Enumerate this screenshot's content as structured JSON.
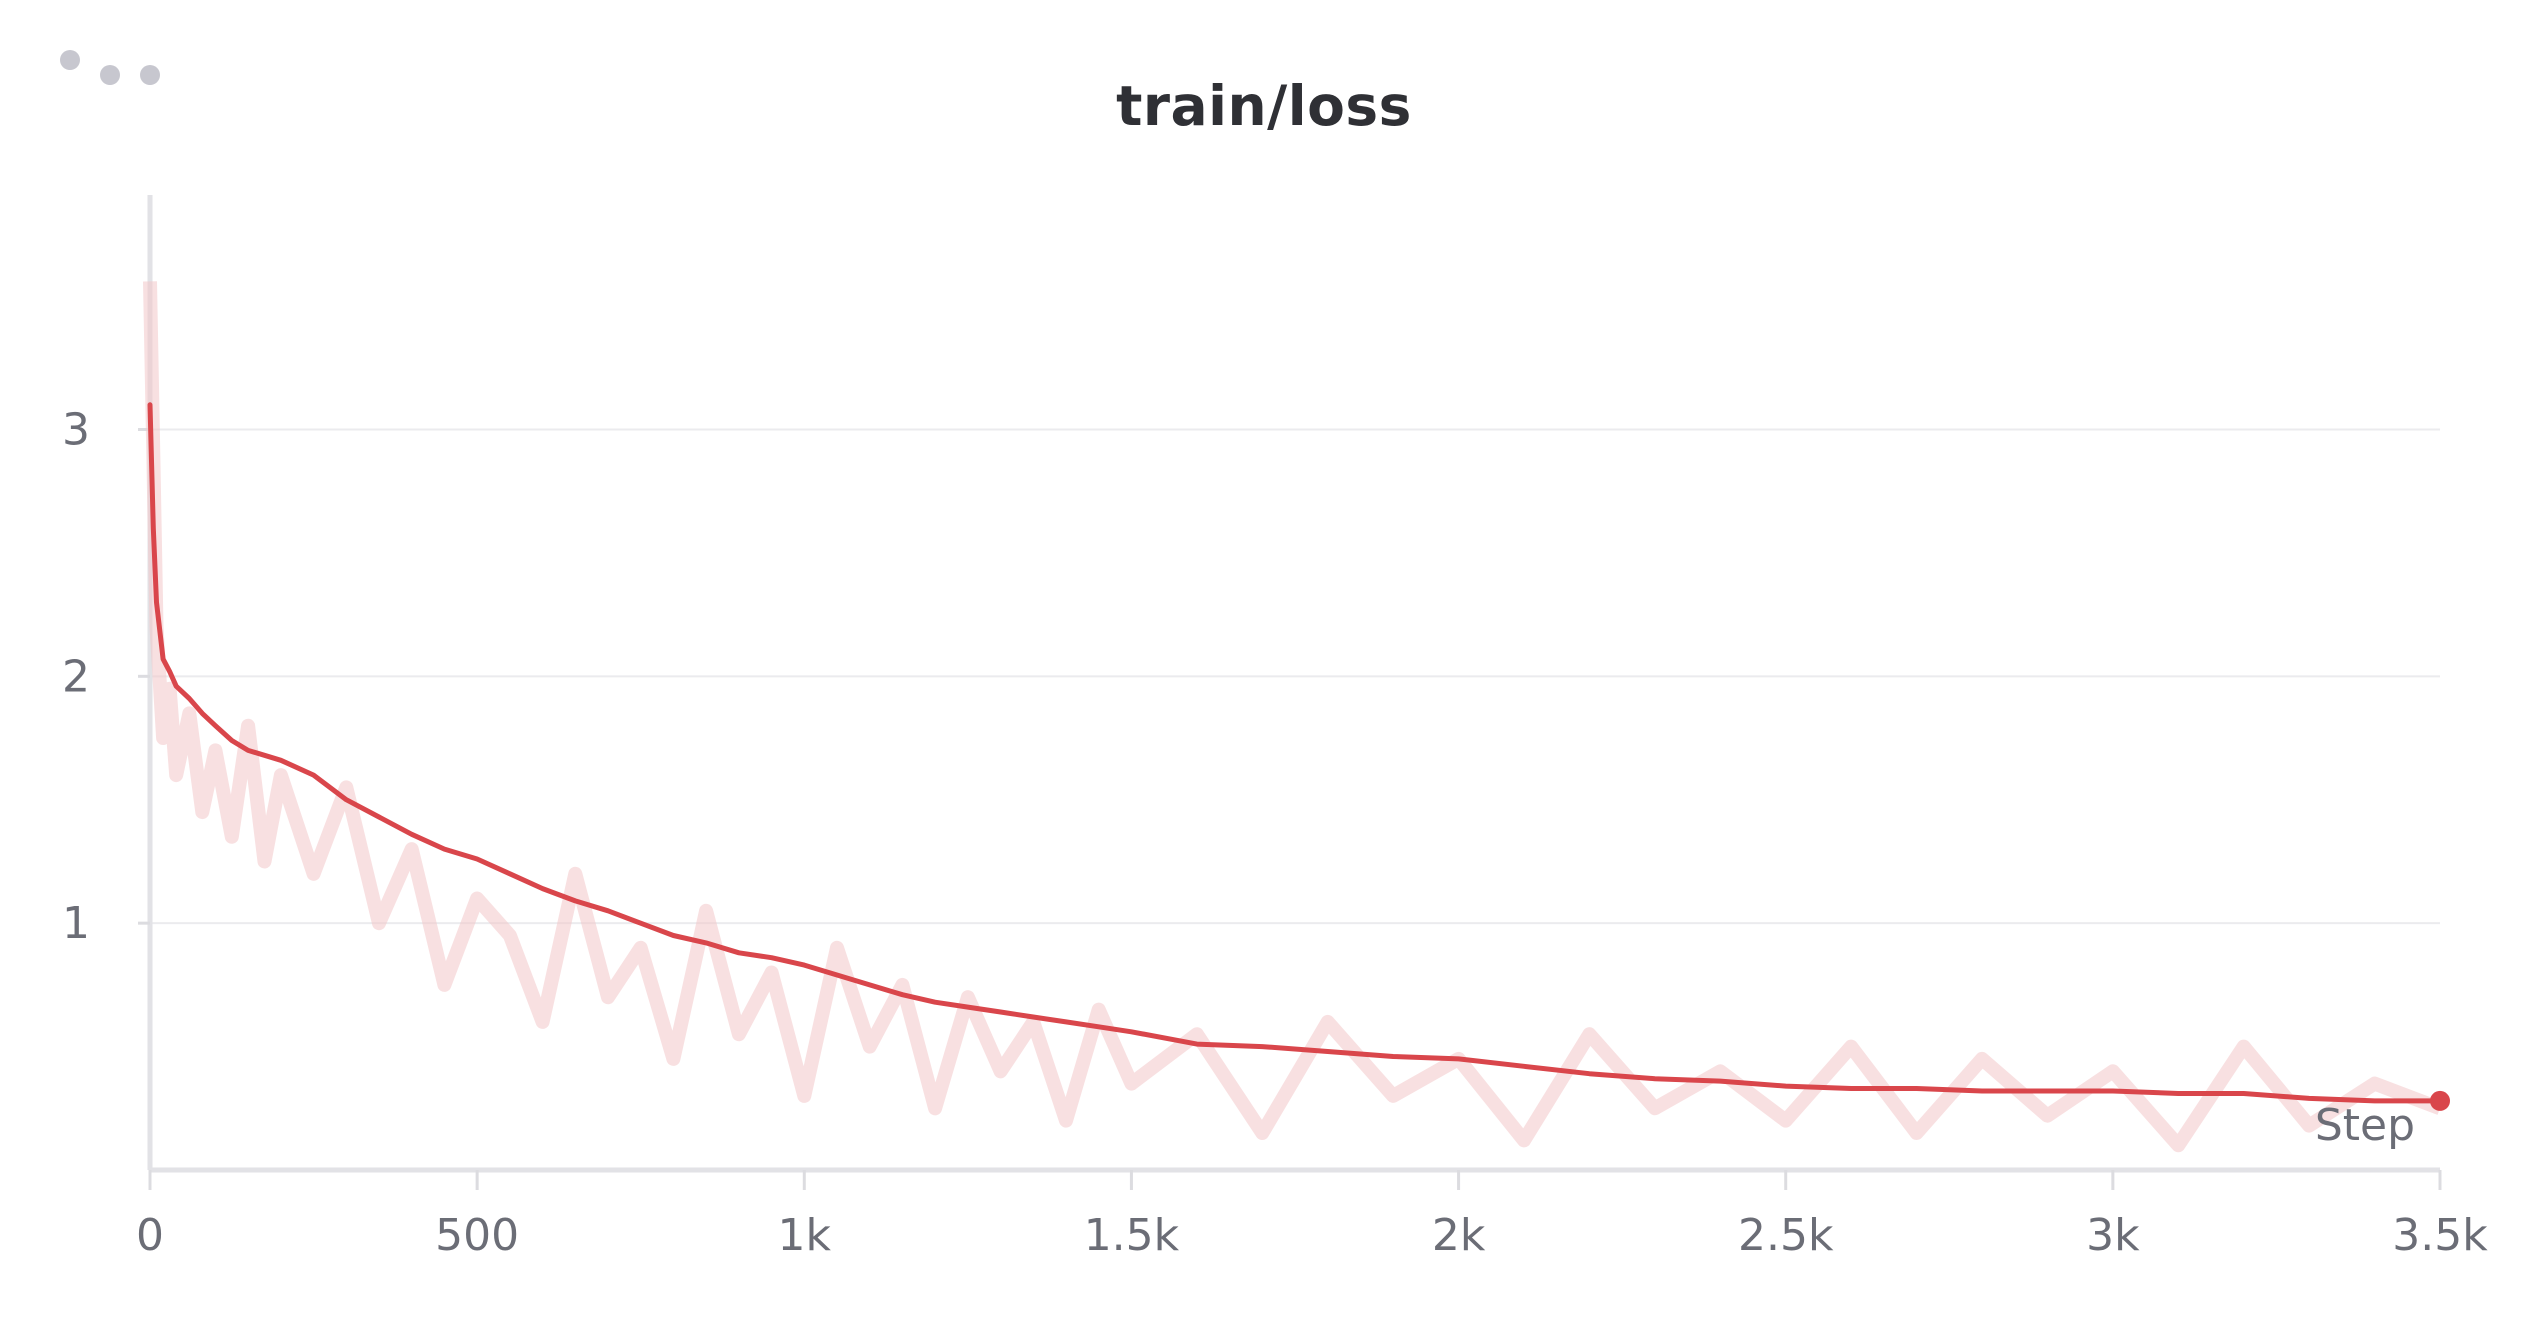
{
  "panel": {
    "menu_icon": "more-horizontal-icon"
  },
  "chart_data": {
    "type": "line",
    "title": "train/loss",
    "xlabel": "Step",
    "ylabel": "",
    "xlim": [
      0,
      3500
    ],
    "ylim": [
      0,
      3.95
    ],
    "x_ticks": [
      0,
      500,
      1000,
      1500,
      2000,
      2500,
      3000,
      3500
    ],
    "x_tick_labels": [
      "0",
      "500",
      "1k",
      "1.5k",
      "2k",
      "2.5k",
      "3k",
      "3.5k"
    ],
    "y_ticks": [
      1,
      2,
      3
    ],
    "y_tick_labels": [
      "1",
      "2",
      "3"
    ],
    "grid": true,
    "series": [
      {
        "role": "smoothed",
        "color": "#d9464b",
        "x": [
          0,
          5,
          10,
          20,
          30,
          40,
          60,
          80,
          100,
          125,
          150,
          175,
          200,
          250,
          300,
          350,
          400,
          450,
          500,
          550,
          600,
          650,
          700,
          750,
          800,
          850,
          900,
          950,
          1000,
          1050,
          1100,
          1150,
          1200,
          1250,
          1300,
          1350,
          1400,
          1450,
          1500,
          1600,
          1700,
          1800,
          1900,
          2000,
          2100,
          2200,
          2300,
          2400,
          2500,
          2600,
          2700,
          2800,
          2900,
          3000,
          3100,
          3200,
          3300,
          3400,
          3500
        ],
        "y": [
          3.1,
          2.6,
          2.3,
          2.07,
          2.02,
          1.96,
          1.91,
          1.85,
          1.8,
          1.74,
          1.7,
          1.68,
          1.66,
          1.6,
          1.5,
          1.43,
          1.36,
          1.3,
          1.26,
          1.2,
          1.14,
          1.09,
          1.05,
          1.0,
          0.95,
          0.92,
          0.88,
          0.86,
          0.83,
          0.79,
          0.75,
          0.71,
          0.68,
          0.66,
          0.64,
          0.62,
          0.6,
          0.58,
          0.56,
          0.51,
          0.5,
          0.48,
          0.46,
          0.45,
          0.42,
          0.39,
          0.37,
          0.36,
          0.34,
          0.33,
          0.33,
          0.32,
          0.32,
          0.32,
          0.31,
          0.31,
          0.29,
          0.28,
          0.28
        ]
      },
      {
        "role": "raw",
        "color": "#f3c6c8",
        "x": [
          0,
          5,
          10,
          20,
          30,
          40,
          60,
          80,
          100,
          125,
          150,
          175,
          200,
          250,
          300,
          350,
          400,
          450,
          500,
          550,
          600,
          650,
          700,
          750,
          800,
          850,
          900,
          950,
          1000,
          1050,
          1100,
          1150,
          1200,
          1250,
          1300,
          1350,
          1400,
          1450,
          1500,
          1600,
          1700,
          1800,
          1900,
          2000,
          2100,
          2200,
          2300,
          2400,
          2500,
          2600,
          2700,
          2800,
          2900,
          3000,
          3100,
          3200,
          3300,
          3400,
          3500
        ],
        "y": [
          3.6,
          2.9,
          2.2,
          1.75,
          1.95,
          1.6,
          1.85,
          1.45,
          1.7,
          1.35,
          1.8,
          1.25,
          1.6,
          1.2,
          1.55,
          1.0,
          1.3,
          0.75,
          1.1,
          0.95,
          0.6,
          1.2,
          0.7,
          0.9,
          0.45,
          1.05,
          0.55,
          0.8,
          0.3,
          0.9,
          0.5,
          0.75,
          0.25,
          0.7,
          0.4,
          0.6,
          0.2,
          0.65,
          0.35,
          0.55,
          0.15,
          0.6,
          0.3,
          0.45,
          0.12,
          0.55,
          0.25,
          0.4,
          0.2,
          0.5,
          0.15,
          0.45,
          0.22,
          0.4,
          0.1,
          0.5,
          0.18,
          0.35,
          0.25
        ]
      }
    ],
    "end_marker": {
      "x": 3500,
      "y": 0.28
    }
  }
}
